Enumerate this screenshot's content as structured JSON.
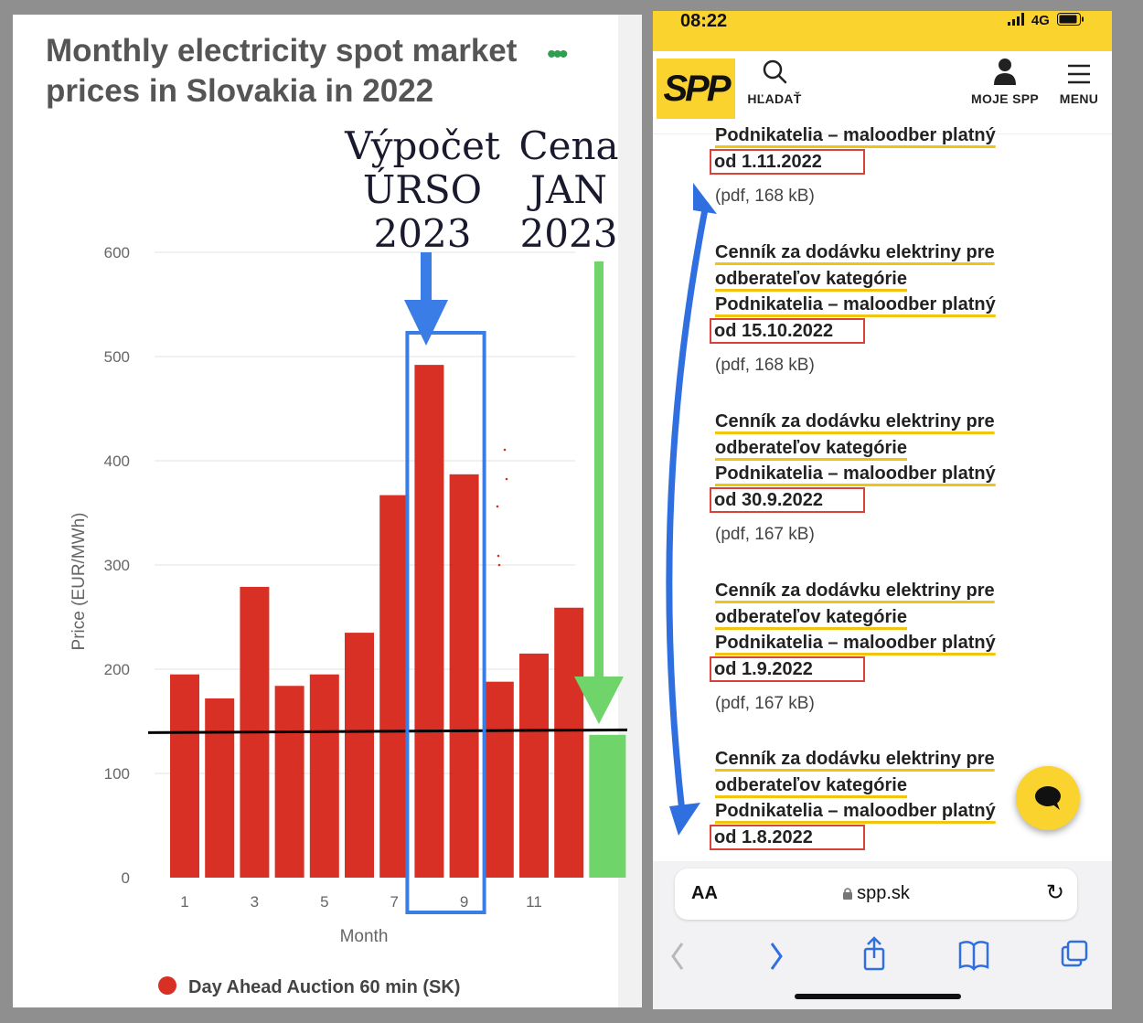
{
  "left": {
    "title_line1": "Monthly electricity spot market",
    "title_line2": "prices in Slovakia in 2022",
    "menu_dots": "•••",
    "annotation_urso": [
      "Výpočet",
      "ÚRSO",
      "2023"
    ],
    "annotation_jan": [
      "Cena",
      "JAN",
      "2023"
    ]
  },
  "chart_data": {
    "type": "bar",
    "xlabel": "Month",
    "ylabel": "Price (EUR/MWh)",
    "ylim": [
      0,
      600
    ],
    "yticks": [
      0,
      100,
      200,
      300,
      400,
      500,
      600
    ],
    "xtick_labels": [
      "1",
      "3",
      "5",
      "7",
      "9",
      "11"
    ],
    "categories": [
      1,
      2,
      3,
      4,
      5,
      6,
      7,
      8,
      9,
      10,
      11,
      12
    ],
    "series": [
      {
        "name": "Day Ahead Auction 60 min (SK)",
        "color": "#d93025",
        "values": [
          195,
          172,
          279,
          184,
          195,
          235,
          367,
          492,
          387,
          188,
          215,
          259
        ]
      }
    ],
    "extra_bar": {
      "value": 137,
      "color": "#6fd46a"
    },
    "reference_line": {
      "value": 140,
      "color": "#000000"
    },
    "highlight_months": [
      8,
      9
    ],
    "highlight_color": "#3b7de6",
    "arrow_colors": {
      "urso": "#3b7de6",
      "jan": "#6fd46a"
    },
    "grid": true,
    "legend_position": "bottom"
  },
  "right": {
    "status_time": "08:22",
    "status_signal": "4G",
    "logo": "SPP",
    "search_label": "HĽADAŤ",
    "account_label": "MOJE SPP",
    "menu_label": "MENU",
    "docs": [
      {
        "lines": [
          "Podnikatelia – maloodber platný"
        ],
        "date": "od 1.11.2022",
        "meta": "(pdf, 168 kB)"
      },
      {
        "lines": [
          "Cenník za dodávku elektriny pre",
          "odberateľov kategórie",
          "Podnikatelia – maloodber platný"
        ],
        "date": "od 15.10.2022",
        "meta": "(pdf, 168 kB)"
      },
      {
        "lines": [
          "Cenník za dodávku elektriny pre",
          "odberateľov kategórie",
          "Podnikatelia – maloodber platný"
        ],
        "date": "od 30.9.2022",
        "meta": "(pdf, 167 kB)"
      },
      {
        "lines": [
          "Cenník za dodávku elektriny pre",
          "odberateľov kategórie",
          "Podnikatelia – maloodber platný"
        ],
        "date": "od 1.9.2022",
        "meta": "(pdf, 167 kB)"
      },
      {
        "lines": [
          "Cenník za dodávku elektriny pre",
          "odberateľov kategórie",
          "Podnikatelia – maloodber platný"
        ],
        "date": "od 1.8.2022",
        "meta": ""
      }
    ],
    "browser": {
      "text_size": "AA",
      "url": "spp.sk"
    }
  },
  "colors": {
    "spp_yellow": "#fad32f",
    "date_box_red": "#d9423a",
    "nav_blue": "#2f6fdf"
  }
}
